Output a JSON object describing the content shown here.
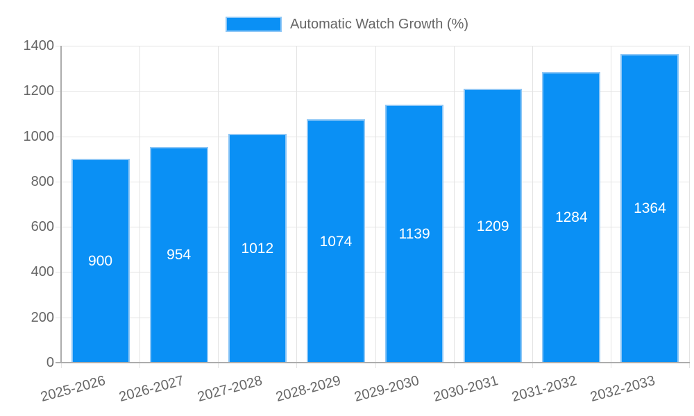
{
  "chart_data": {
    "type": "bar",
    "title": "Automatic Watch Growth (%)",
    "categories": [
      "2025-2026",
      "2026-2027",
      "2027-2028",
      "2028-2029",
      "2029-2030",
      "2030-2031",
      "2031-2032",
      "2032-2033"
    ],
    "values": [
      900,
      954,
      1012,
      1074,
      1139,
      1209,
      1284,
      1364
    ],
    "xlabel": "",
    "ylabel": "",
    "ylim": [
      0,
      1400
    ],
    "yticks": [
      0,
      200,
      400,
      600,
      800,
      1000,
      1200,
      1400
    ],
    "grid": true,
    "legend_position": "top",
    "value_label_position": "inside-center"
  },
  "colors": {
    "bar_fill": "#0A90F5",
    "bar_border": "#8EC7F6",
    "gridline": "#E3E3E3",
    "axis_line": "#ACACAC",
    "tick_label": "#666666",
    "value_label": "#FFFFFF",
    "background": "#FFFFFF"
  }
}
